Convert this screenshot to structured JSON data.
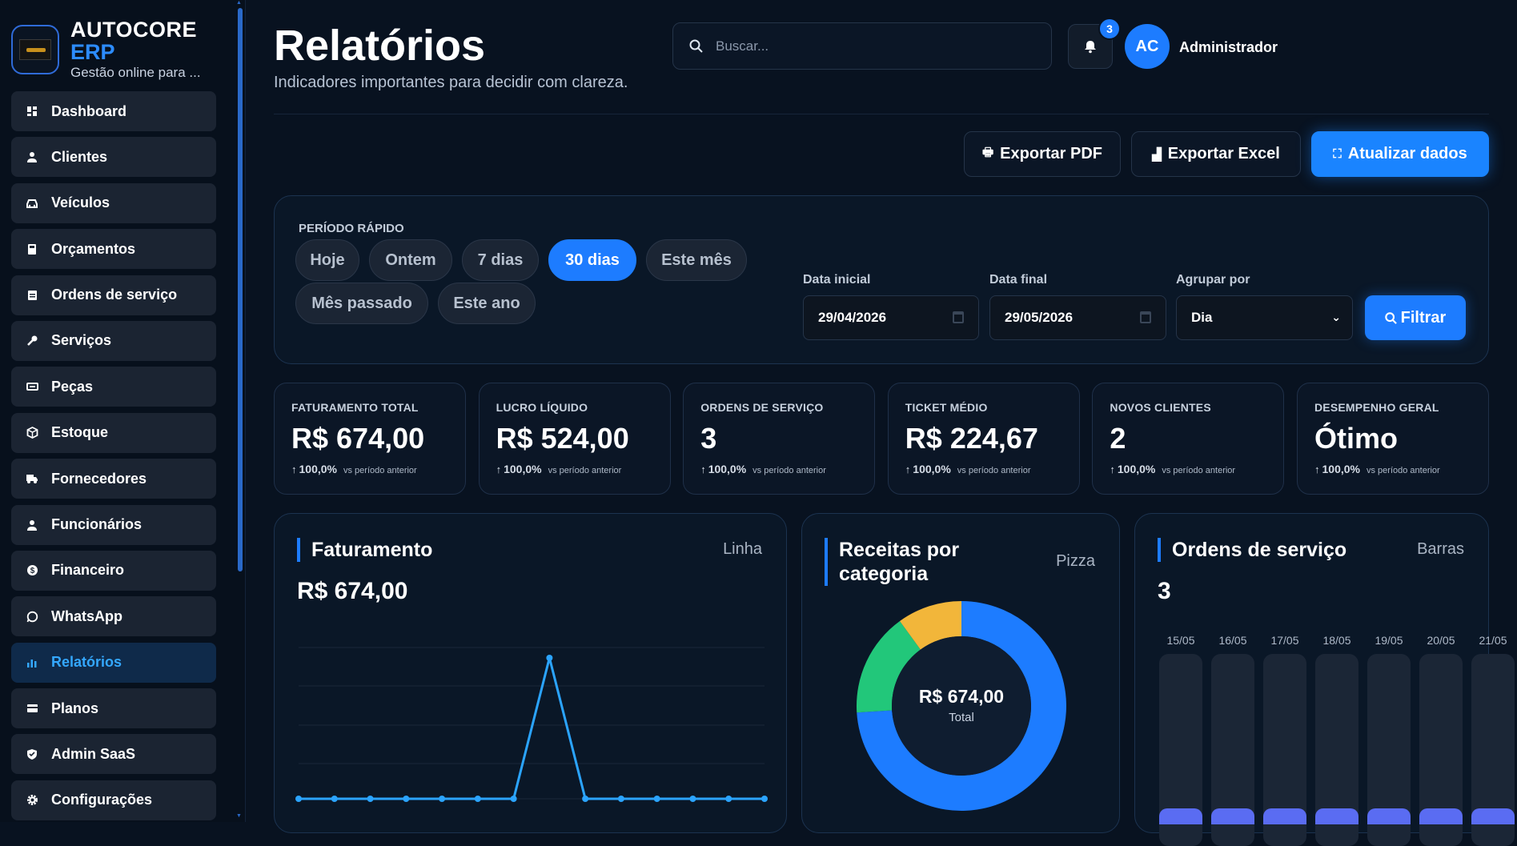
{
  "app": {
    "name": "AUTOCORE",
    "name_suffix": "ERP",
    "tagline": "Gestão online para ..."
  },
  "sidebar": {
    "items": [
      {
        "label": "Dashboard",
        "icon": "dashboard-icon"
      },
      {
        "label": "Clientes",
        "icon": "user-icon"
      },
      {
        "label": "Veículos",
        "icon": "car-icon"
      },
      {
        "label": "Orçamentos",
        "icon": "calculator-icon"
      },
      {
        "label": "Ordens de serviço",
        "icon": "clipboard-icon"
      },
      {
        "label": "Serviços",
        "icon": "wrench-icon"
      },
      {
        "label": "Peças",
        "icon": "part-icon"
      },
      {
        "label": "Estoque",
        "icon": "box-icon"
      },
      {
        "label": "Fornecedores",
        "icon": "truck-icon"
      },
      {
        "label": "Funcionários",
        "icon": "employee-icon"
      },
      {
        "label": "Financeiro",
        "icon": "dollar-icon"
      },
      {
        "label": "WhatsApp",
        "icon": "whatsapp-icon"
      },
      {
        "label": "Relatórios",
        "icon": "bar-chart-icon",
        "active": true
      },
      {
        "label": "Planos",
        "icon": "card-icon"
      },
      {
        "label": "Admin SaaS",
        "icon": "shield-icon"
      },
      {
        "label": "Configurações",
        "icon": "gear-icon"
      }
    ]
  },
  "header": {
    "title": "Relatórios",
    "subtitle": "Indicadores importantes para decidir com clareza.",
    "search_placeholder": "Buscar...",
    "notification_count": "3",
    "avatar_initials": "AC",
    "user_name": "Administrador"
  },
  "actions": {
    "export_pdf": "Exportar PDF",
    "export_excel": "Exportar Excel",
    "refresh": "Atualizar dados"
  },
  "filters": {
    "quick_label": "PERÍODO RÁPIDO",
    "quick_options": [
      "Hoje",
      "Ontem",
      "7 dias",
      "30 dias",
      "Este mês",
      "Mês passado",
      "Este ano"
    ],
    "quick_selected": "30 dias",
    "start_label": "Data inicial",
    "start_value": "29/04/2026",
    "end_label": "Data final",
    "end_value": "29/05/2026",
    "group_label": "Agrupar por",
    "group_value": "Dia",
    "filter_button": "Filtrar"
  },
  "kpis": [
    {
      "label": "FATURAMENTO TOTAL",
      "value": "R$ 674,00",
      "delta": "100,0%",
      "compare": "vs período anterior"
    },
    {
      "label": "LUCRO LÍQUIDO",
      "value": "R$ 524,00",
      "delta": "100,0%",
      "compare": "vs período anterior"
    },
    {
      "label": "ORDENS DE SERVIÇO",
      "value": "3",
      "delta": "100,0%",
      "compare": "vs período anterior"
    },
    {
      "label": "TICKET MÉDIO",
      "value": "R$ 224,67",
      "delta": "100,0%",
      "compare": "vs período anterior"
    },
    {
      "label": "NOVOS CLIENTES",
      "value": "2",
      "delta": "100,0%",
      "compare": "vs período anterior"
    },
    {
      "label": "DESEMPENHO GERAL",
      "value": "Ótimo",
      "delta": "100,0%",
      "compare": "vs período anterior"
    }
  ],
  "cards": {
    "revenue": {
      "title": "Faturamento",
      "type": "Linha",
      "value": "R$ 674,00"
    },
    "categories": {
      "title": "Receitas por categoria",
      "type": "Pizza",
      "center_value": "R$ 674,00",
      "center_label": "Total"
    },
    "orders": {
      "title": "Ordens de serviço",
      "type": "Barras",
      "value": "3"
    }
  },
  "colors": {
    "accent": "#1d7cff",
    "line": "#2ba4ff",
    "donut": [
      "#1d7cff",
      "#22c77a",
      "#f2b63a"
    ],
    "bar": "#5a6cf2"
  },
  "chart_data": [
    {
      "type": "line",
      "title": "Faturamento",
      "values": [
        0,
        0,
        0,
        0,
        0,
        0,
        0,
        674,
        0,
        0,
        0,
        0,
        0,
        0
      ]
    },
    {
      "type": "pie",
      "title": "Receitas por categoria",
      "values": [
        0.74,
        0.16,
        0.1
      ]
    },
    {
      "type": "bar",
      "title": "Ordens de serviço",
      "categories": [
        "15/05",
        "16/05",
        "17/05",
        "18/05",
        "19/05",
        "20/05",
        "21/05"
      ]
    }
  ]
}
